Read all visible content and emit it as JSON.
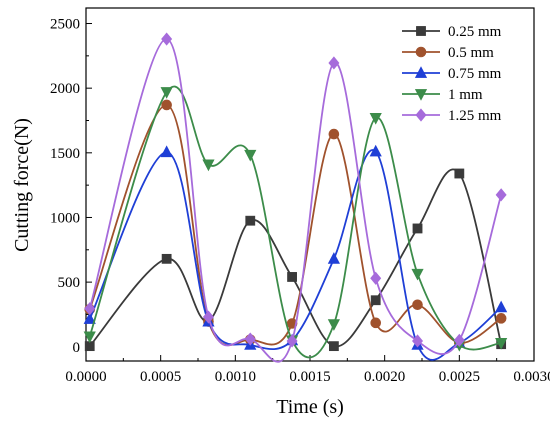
{
  "chart_data": {
    "type": "line",
    "title": "",
    "xlabel": "Time (s)",
    "ylabel": "Cutting force(N)",
    "xlim": [
      0.0,
      0.003
    ],
    "ylim": [
      -110,
      2620
    ],
    "xticks": [
      0.0,
      0.0005,
      0.001,
      0.0015,
      0.002,
      0.0025,
      0.003
    ],
    "xtick_labels": [
      "0.0000",
      "0.0005",
      "0.0010",
      "0.0015",
      "0.0020",
      "0.0025",
      "0.0030"
    ],
    "yticks": [
      0,
      500,
      1000,
      1500,
      2000,
      2500
    ],
    "ytick_labels": [
      "0",
      "500",
      "1000",
      "1500",
      "2000",
      "2500"
    ],
    "x": [
      2.5e-05,
      0.00054,
      0.00082,
      0.0011,
      0.00138,
      0.00166,
      0.00194,
      0.00222,
      0.0025,
      0.00278
    ],
    "grid": false,
    "legend_position": "top-right",
    "smoothed": true,
    "series": [
      {
        "name": "0.25 mm",
        "color": "#3a3a3a",
        "marker": "square",
        "values": [
          5,
          680,
          200,
          975,
          540,
          5,
          360,
          915,
          1340,
          20
        ]
      },
      {
        "name": "0.5 mm",
        "color": "#a0522d",
        "marker": "circle",
        "values": [
          290,
          1870,
          195,
          55,
          180,
          1645,
          185,
          325,
          30,
          220
        ]
      },
      {
        "name": "0.75 mm",
        "color": "#1f3fd6",
        "marker": "triangle-up",
        "values": [
          215,
          1505,
          195,
          15,
          50,
          680,
          1510,
          15,
          30,
          305
        ]
      },
      {
        "name": "1 mm",
        "color": "#3c8c4a",
        "marker": "triangle-down",
        "values": [
          80,
          1970,
          1410,
          1485,
          50,
          175,
          1770,
          565,
          15,
          30
        ]
      },
      {
        "name": "1.25 mm",
        "color": "#a66bdb",
        "marker": "diamond",
        "values": [
          295,
          2380,
          230,
          60,
          45,
          2195,
          530,
          45,
          50,
          1175
        ]
      }
    ]
  }
}
